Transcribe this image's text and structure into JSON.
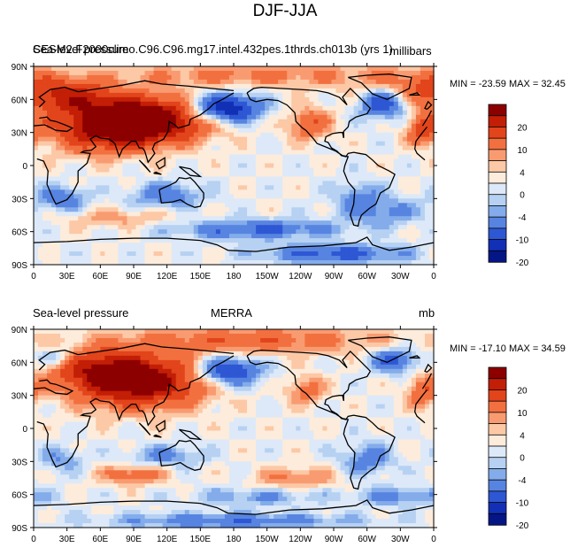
{
  "page": {
    "title": "DJF-JJA"
  },
  "chart_data": [
    {
      "type": "heatmap",
      "title": "CESM2.F2000climo.C96.C96.mg17.intel.432pes.1thrds.ch013b (yrs 1)",
      "variable": "Sea-level pressure",
      "units": "millibars",
      "stats_text": "MIN = -23.59 MAX =  32.45",
      "x_ticks": [
        "0",
        "30E",
        "60E",
        "90E",
        "120E",
        "150E",
        "180",
        "150W",
        "120W",
        "90W",
        "60W",
        "30W",
        "0"
      ],
      "y_ticks": [
        "90N",
        "60N",
        "30N",
        "0",
        "30S",
        "60S",
        "90S"
      ],
      "xlim": [
        0,
        360
      ],
      "ylim": [
        -90,
        90
      ],
      "colorbar_labels": [
        "20",
        "10",
        "4",
        "0",
        "-4",
        "-10",
        "-20"
      ],
      "colorbar_colors": [
        "#8c0000",
        "#c31e06",
        "#e2441b",
        "#f2703f",
        "#f99b71",
        "#fcc8a6",
        "#fdecdb",
        "#dde9f8",
        "#b6d1f2",
        "#84aceb",
        "#5784e0",
        "#2e57d4",
        "#1230b5",
        "#041685"
      ],
      "fields": [
        {
          "lon": 100,
          "lat": 42,
          "amp": 26,
          "sx": 40,
          "sy": 14
        },
        {
          "lon": 65,
          "lat": 32,
          "amp": 15,
          "sx": 35,
          "sy": 15
        },
        {
          "lon": 35,
          "lat": 62,
          "amp": 11,
          "sx": 28,
          "sy": 10
        },
        {
          "lon": 350,
          "lat": 70,
          "amp": 9,
          "sx": 40,
          "sy": 12
        },
        {
          "lon": 195,
          "lat": 82,
          "amp": 7,
          "sx": 90,
          "sy": 8
        },
        {
          "lon": 172,
          "lat": 52,
          "amp": -22,
          "sx": 22,
          "sy": 9
        },
        {
          "lon": 315,
          "lat": 57,
          "amp": -15,
          "sx": 16,
          "sy": 10
        },
        {
          "lon": 248,
          "lat": 38,
          "amp": 10,
          "sx": 14,
          "sy": 10
        },
        {
          "lon": 350,
          "lat": 33,
          "amp": 11,
          "sx": 10,
          "sy": 10
        },
        {
          "lon": 25,
          "lat": -30,
          "amp": -9,
          "sx": 16,
          "sy": 8
        },
        {
          "lon": 120,
          "lat": -27,
          "amp": -9,
          "sx": 22,
          "sy": 8
        },
        {
          "lon": 292,
          "lat": -27,
          "amp": -6,
          "sx": 16,
          "sy": 10
        },
        {
          "lon": 200,
          "lat": -58,
          "amp": -11,
          "sx": 50,
          "sy": 6
        },
        {
          "lon": 315,
          "lat": -42,
          "amp": -7,
          "sx": 26,
          "sy": 9
        },
        {
          "lon": 75,
          "lat": -48,
          "amp": 5,
          "sx": 35,
          "sy": 6
        },
        {
          "lon": 270,
          "lat": -80,
          "amp": -12,
          "sx": 45,
          "sy": 6
        }
      ]
    },
    {
      "type": "heatmap",
      "title": "MERRA",
      "variable": "Sea-level pressure",
      "units": "mb",
      "stats_text": "MIN = -17.10 MAX =  34.59",
      "x_ticks": [
        "0",
        "30E",
        "60E",
        "90E",
        "120E",
        "150E",
        "180",
        "150W",
        "120W",
        "90W",
        "60W",
        "30W",
        "0"
      ],
      "y_ticks": [
        "90N",
        "60N",
        "30N",
        "0",
        "30S",
        "60S",
        "90S"
      ],
      "xlim": [
        0,
        360
      ],
      "ylim": [
        -90,
        90
      ],
      "colorbar_labels": [
        "20",
        "10",
        "4",
        "0",
        "-4",
        "-10",
        "-20"
      ],
      "colorbar_colors": [
        "#8c0000",
        "#c31e06",
        "#e2441b",
        "#f2703f",
        "#f99b71",
        "#fcc8a6",
        "#fdecdb",
        "#dde9f8",
        "#b6d1f2",
        "#84aceb",
        "#5784e0",
        "#2e57d4",
        "#1230b5",
        "#041685"
      ],
      "fields": [
        {
          "lon": 95,
          "lat": 42,
          "amp": 24,
          "sx": 40,
          "sy": 16
        },
        {
          "lon": 60,
          "lat": 55,
          "amp": 12,
          "sx": 30,
          "sy": 12
        },
        {
          "lon": 195,
          "lat": 80,
          "amp": 9,
          "sx": 90,
          "sy": 9
        },
        {
          "lon": 175,
          "lat": 52,
          "amp": -17,
          "sx": 20,
          "sy": 9
        },
        {
          "lon": 325,
          "lat": 62,
          "amp": -12,
          "sx": 15,
          "sy": 8
        },
        {
          "lon": 20,
          "lat": 65,
          "amp": -7,
          "sx": 12,
          "sy": 6
        },
        {
          "lon": 245,
          "lat": 35,
          "amp": 8,
          "sx": 12,
          "sy": 9
        },
        {
          "lon": 350,
          "lat": 33,
          "amp": 9,
          "sx": 10,
          "sy": 10
        },
        {
          "lon": 90,
          "lat": -42,
          "amp": 9,
          "sx": 20,
          "sy": 6
        },
        {
          "lon": 235,
          "lat": -45,
          "amp": 7,
          "sx": 25,
          "sy": 7
        },
        {
          "lon": 25,
          "lat": -28,
          "amp": -6,
          "sx": 14,
          "sy": 8
        },
        {
          "lon": 120,
          "lat": -25,
          "amp": -7,
          "sx": 22,
          "sy": 7
        },
        {
          "lon": 300,
          "lat": -28,
          "amp": -8,
          "sx": 16,
          "sy": 10
        },
        {
          "lon": 200,
          "lat": -62,
          "amp": -6,
          "sx": 40,
          "sy": 6
        },
        {
          "lon": 330,
          "lat": -62,
          "amp": -7,
          "sx": 30,
          "sy": 6
        },
        {
          "lon": 180,
          "lat": -84,
          "amp": -9,
          "sx": 80,
          "sy": 5
        }
      ]
    }
  ]
}
